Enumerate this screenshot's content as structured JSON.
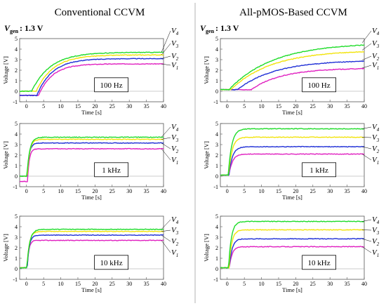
{
  "columns": [
    {
      "title": "Conventional CCVM",
      "vgen_label": "V",
      "vgen_sub": "gen",
      "vgen_value": ": 1.3 V"
    },
    {
      "title": "All-pMOS-Based CCVM",
      "vgen_label": "V",
      "vgen_sub": "gen",
      "vgen_value": ": 1.3 V"
    }
  ],
  "colors": {
    "V1": "#e020c0",
    "V2": "#1f2fd6",
    "V3": "#f2e30a",
    "V4": "#1fdc2a"
  },
  "chart_data": [
    {
      "type": "line",
      "column": 0,
      "frequency_label": "100 Hz",
      "xlabel": "Time [s]",
      "ylabel": "Voltage [V]",
      "xlim": [
        -2,
        40
      ],
      "ylim": [
        -1,
        5
      ],
      "xticks": [
        0,
        5,
        10,
        15,
        20,
        25,
        30,
        35,
        40
      ],
      "yticks": [
        -1,
        0,
        1,
        2,
        3,
        4,
        5
      ],
      "series": [
        {
          "name": "V",
          "sub": "1",
          "color": "#e020c0",
          "start": 3.5,
          "initial": -0.4,
          "final": 2.6,
          "tau": 4.0
        },
        {
          "name": "V",
          "sub": "2",
          "color": "#1f2fd6",
          "start": 3.0,
          "initial": -0.4,
          "final": 3.1,
          "tau": 4.5
        },
        {
          "name": "V",
          "sub": "3",
          "color": "#f2e30a",
          "start": 2.8,
          "initial": 0.0,
          "final": 3.45,
          "tau": 5.0
        },
        {
          "name": "V",
          "sub": "4",
          "color": "#1fdc2a",
          "start": 1.5,
          "initial": 0.0,
          "final": 3.7,
          "tau": 5.5
        }
      ]
    },
    {
      "type": "line",
      "column": 0,
      "frequency_label": "1 kHz",
      "xlabel": "Time [s]",
      "ylabel": "Voltage [V]",
      "xlim": [
        -2,
        40
      ],
      "ylim": [
        -1,
        5
      ],
      "xticks": [
        0,
        5,
        10,
        15,
        20,
        25,
        30,
        35,
        40
      ],
      "yticks": [
        -1,
        0,
        1,
        2,
        3,
        4,
        5
      ],
      "series": [
        {
          "name": "V",
          "sub": "1",
          "color": "#e020c0",
          "start": 0.3,
          "initial": -0.5,
          "final": 2.6,
          "tau": 0.5
        },
        {
          "name": "V",
          "sub": "2",
          "color": "#1f2fd6",
          "start": 0.2,
          "initial": 0.0,
          "final": 3.15,
          "tau": 0.6
        },
        {
          "name": "V",
          "sub": "3",
          "color": "#f2e30a",
          "start": 0.2,
          "initial": 0.0,
          "final": 3.5,
          "tau": 0.7
        },
        {
          "name": "V",
          "sub": "4",
          "color": "#1fdc2a",
          "start": 0.1,
          "initial": 0.0,
          "final": 3.7,
          "tau": 0.8
        }
      ]
    },
    {
      "type": "line",
      "column": 0,
      "frequency_label": "10 kHz",
      "xlabel": "Time [s]",
      "ylabel": "Voltage [V]",
      "xlim": [
        -2,
        40
      ],
      "ylim": [
        -1,
        5
      ],
      "xticks": [
        0,
        5,
        10,
        15,
        20,
        25,
        30,
        35,
        40
      ],
      "yticks": [
        -1,
        0,
        1,
        2,
        3,
        4,
        5
      ],
      "series": [
        {
          "name": "V",
          "sub": "1",
          "color": "#e020c0",
          "start": 0.2,
          "initial": 0.1,
          "final": 2.7,
          "tau": 0.5
        },
        {
          "name": "V",
          "sub": "2",
          "color": "#1f2fd6",
          "start": 0.2,
          "initial": 0.1,
          "final": 3.2,
          "tau": 0.6
        },
        {
          "name": "V",
          "sub": "3",
          "color": "#f2e30a",
          "start": 0.1,
          "initial": 0.1,
          "final": 3.55,
          "tau": 0.7
        },
        {
          "name": "V",
          "sub": "4",
          "color": "#1fdc2a",
          "start": 0.1,
          "initial": 0.1,
          "final": 3.75,
          "tau": 0.8
        }
      ]
    },
    {
      "type": "line",
      "column": 1,
      "frequency_label": "100 Hz",
      "xlabel": "Time [s]",
      "ylabel": "Voltage [V]",
      "xlim": [
        -2,
        40
      ],
      "ylim": [
        -1,
        5
      ],
      "xticks": [
        0,
        5,
        10,
        15,
        20,
        25,
        30,
        35,
        40
      ],
      "yticks": [
        -1,
        0,
        1,
        2,
        3,
        4,
        5
      ],
      "series": [
        {
          "name": "V",
          "sub": "1",
          "color": "#e020c0",
          "start": 7.0,
          "initial": 0.15,
          "final": 2.2,
          "tau": 9.0
        },
        {
          "name": "V",
          "sub": "2",
          "color": "#1f2fd6",
          "start": 3.0,
          "initial": 0.15,
          "final": 2.95,
          "tau": 11.0
        },
        {
          "name": "V",
          "sub": "3",
          "color": "#f2e30a",
          "start": 1.0,
          "initial": 0.15,
          "final": 3.9,
          "tau": 12.0
        },
        {
          "name": "V",
          "sub": "4",
          "color": "#1fdc2a",
          "start": 0.5,
          "initial": 0.15,
          "final": 4.6,
          "tau": 13.0
        }
      ]
    },
    {
      "type": "line",
      "column": 1,
      "frequency_label": "1 kHz",
      "xlabel": "Time [s]",
      "ylabel": "Voltage [V]",
      "xlim": [
        -2,
        40
      ],
      "ylim": [
        -1,
        5
      ],
      "xticks": [
        0,
        5,
        10,
        15,
        20,
        25,
        30,
        35,
        40
      ],
      "yticks": [
        -1,
        0,
        1,
        2,
        3,
        4,
        5
      ],
      "series": [
        {
          "name": "V",
          "sub": "1",
          "color": "#e020c0",
          "start": 0.5,
          "initial": 0.1,
          "final": 2.1,
          "tau": 1.0
        },
        {
          "name": "V",
          "sub": "2",
          "color": "#1f2fd6",
          "start": 0.5,
          "initial": 0.1,
          "final": 2.8,
          "tau": 1.0
        },
        {
          "name": "V",
          "sub": "3",
          "color": "#f2e30a",
          "start": 0.4,
          "initial": 0.1,
          "final": 3.7,
          "tau": 1.0
        },
        {
          "name": "V",
          "sub": "4",
          "color": "#1fdc2a",
          "start": 0.3,
          "initial": 0.1,
          "final": 4.5,
          "tau": 1.0
        }
      ]
    },
    {
      "type": "line",
      "column": 1,
      "frequency_label": "10 kHz",
      "xlabel": "Time [s]",
      "ylabel": "Voltage [V]",
      "xlim": [
        -2,
        40
      ],
      "ylim": [
        -1,
        5
      ],
      "xticks": [
        0,
        5,
        10,
        15,
        20,
        25,
        30,
        35,
        40
      ],
      "yticks": [
        -1,
        0,
        1,
        2,
        3,
        4,
        5
      ],
      "series": [
        {
          "name": "V",
          "sub": "1",
          "color": "#e020c0",
          "start": 0.6,
          "initial": 0.1,
          "final": 2.1,
          "tau": 0.8
        },
        {
          "name": "V",
          "sub": "2",
          "color": "#1f2fd6",
          "start": 0.6,
          "initial": 0.1,
          "final": 2.85,
          "tau": 0.8
        },
        {
          "name": "V",
          "sub": "3",
          "color": "#f2e30a",
          "start": 0.5,
          "initial": 0.1,
          "final": 3.7,
          "tau": 0.8
        },
        {
          "name": "V",
          "sub": "4",
          "color": "#1fdc2a",
          "start": 0.4,
          "initial": 0.1,
          "final": 4.5,
          "tau": 0.8
        }
      ]
    }
  ]
}
